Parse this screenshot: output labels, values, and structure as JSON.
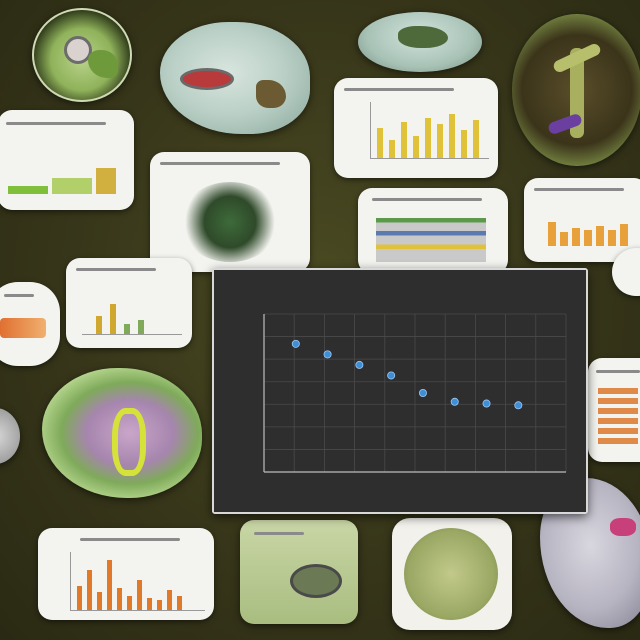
{
  "colors": {
    "background": "#37361a",
    "chart_panel": "#2e2e2e",
    "point": "#3f8fd8",
    "grid": "#4a4a4a"
  },
  "chart_data": {
    "type": "scatter",
    "x": [
      1,
      2,
      3,
      4,
      5,
      6,
      7,
      8
    ],
    "y": [
      7.3,
      6.7,
      6.1,
      5.5,
      4.5,
      4.0,
      3.9,
      3.8
    ],
    "xlim": [
      0,
      9.5
    ],
    "ylim": [
      0,
      9
    ],
    "grid": true
  },
  "decor": {
    "thumb_bar_charts": "bar-chart-thumbnail",
    "specimen_images": "biology-specimen-image"
  }
}
